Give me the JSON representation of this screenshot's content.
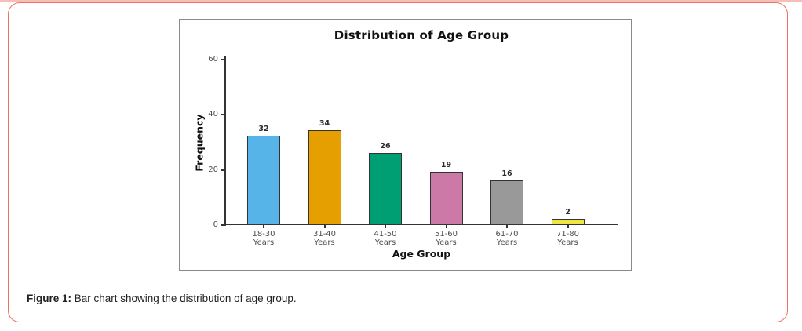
{
  "figure": {
    "caption_label": "Figure 1:",
    "caption_text": " Bar chart showing the distribution of age group."
  },
  "chart_data": {
    "type": "bar",
    "title": "Distribution of Age Group",
    "xlabel": "Age Group",
    "ylabel": "Frequency",
    "categories": [
      "18-30 Years",
      "31-40 Years",
      "41-50 Years",
      "51-60 Years",
      "61-70 Years",
      "71-80 Years"
    ],
    "values": [
      32,
      34,
      26,
      19,
      16,
      2
    ],
    "colors": [
      "#56B4E9",
      "#E69F00",
      "#009E73",
      "#CC79A7",
      "#999999",
      "#F0E442"
    ],
    "bar_edge_color": "#333333",
    "yticks": [
      0,
      20,
      40,
      60
    ],
    "ylim": [
      0,
      60
    ],
    "grid": false,
    "legend": null
  },
  "style": {
    "card_border_color": "#ee7160",
    "panel_border_color": "#8a8a8a",
    "axis_color": "#333333",
    "tick_label_color": "#4d4d4d"
  }
}
